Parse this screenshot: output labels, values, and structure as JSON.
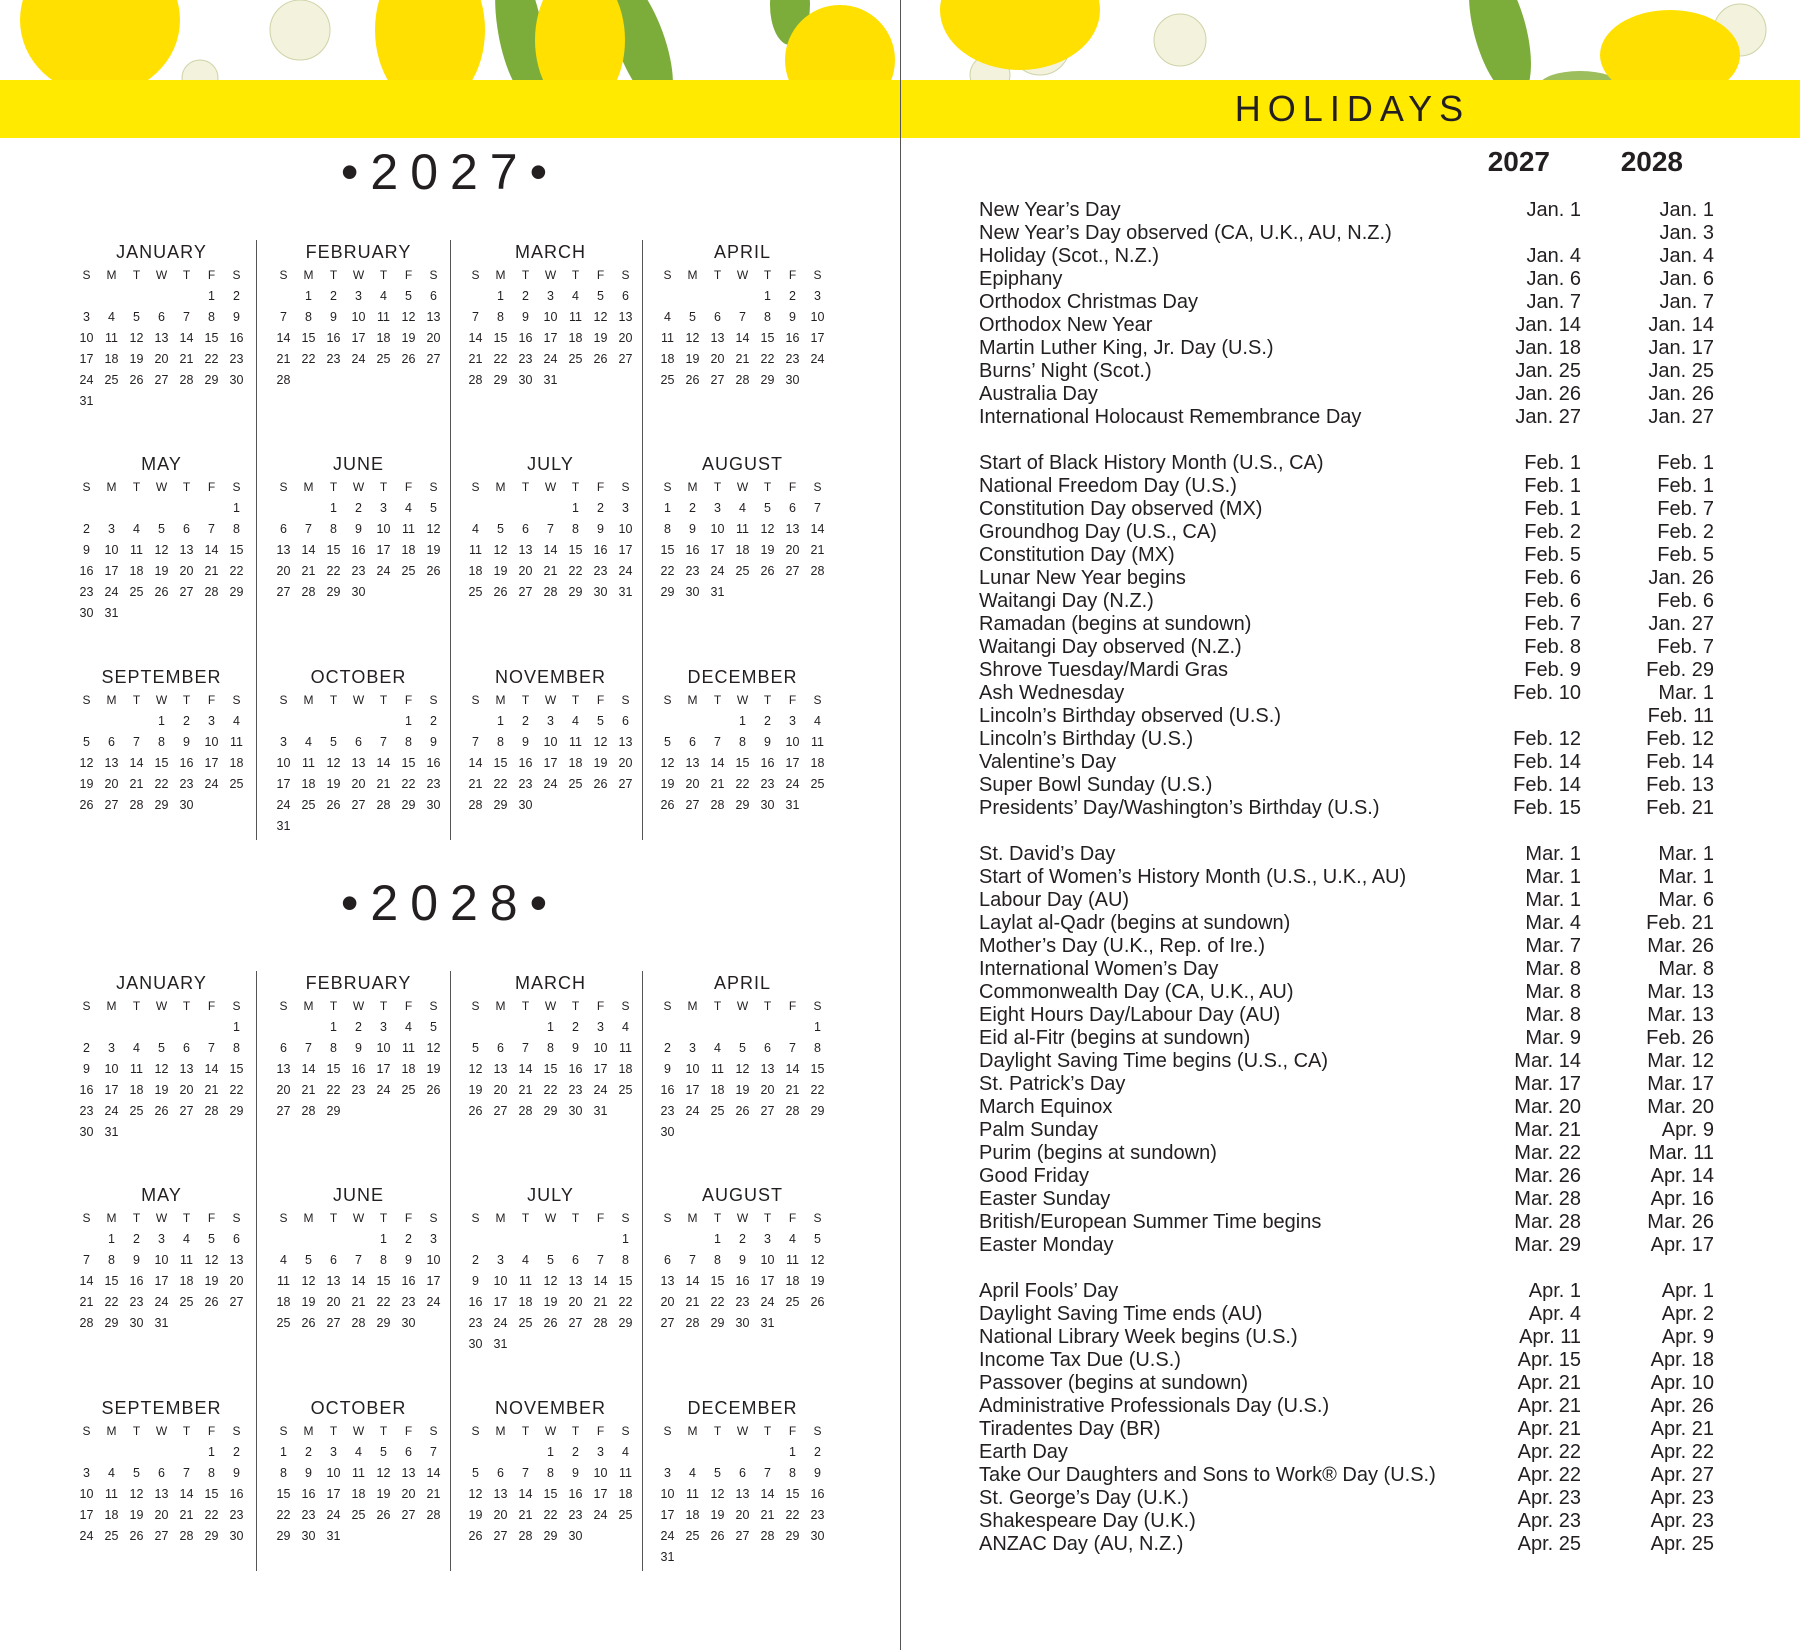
{
  "colors": {
    "band": "#ffea00",
    "text": "#231f20",
    "lemon": "#ffe000",
    "leaf": "#7cad3a"
  },
  "banner": {
    "icon": "lemon-watercolor-illustration"
  },
  "left": {
    "weekdays": [
      "S",
      "M",
      "T",
      "W",
      "T",
      "F",
      "S"
    ],
    "years": [
      {
        "title": "•2027•",
        "months": [
          {
            "name": "JANUARY",
            "start": 5,
            "days": 31
          },
          {
            "name": "FEBRUARY",
            "start": 1,
            "days": 28
          },
          {
            "name": "MARCH",
            "start": 1,
            "days": 31
          },
          {
            "name": "APRIL",
            "start": 4,
            "days": 30
          },
          {
            "name": "MAY",
            "start": 6,
            "days": 31
          },
          {
            "name": "JUNE",
            "start": 2,
            "days": 30
          },
          {
            "name": "JULY",
            "start": 4,
            "days": 31
          },
          {
            "name": "AUGUST",
            "start": 0,
            "days": 31
          },
          {
            "name": "SEPTEMBER",
            "start": 3,
            "days": 30
          },
          {
            "name": "OCTOBER",
            "start": 5,
            "days": 31
          },
          {
            "name": "NOVEMBER",
            "start": 1,
            "days": 30
          },
          {
            "name": "DECEMBER",
            "start": 3,
            "days": 31
          }
        ]
      },
      {
        "title": "•2028•",
        "months": [
          {
            "name": "JANUARY",
            "start": 6,
            "days": 31
          },
          {
            "name": "FEBRUARY",
            "start": 2,
            "days": 29
          },
          {
            "name": "MARCH",
            "start": 3,
            "days": 31
          },
          {
            "name": "APRIL",
            "start": 6,
            "days": 30
          },
          {
            "name": "MAY",
            "start": 1,
            "days": 31
          },
          {
            "name": "JUNE",
            "start": 4,
            "days": 30
          },
          {
            "name": "JULY",
            "start": 6,
            "days": 31
          },
          {
            "name": "AUGUST",
            "start": 2,
            "days": 31
          },
          {
            "name": "SEPTEMBER",
            "start": 5,
            "days": 30
          },
          {
            "name": "OCTOBER",
            "start": 0,
            "days": 31
          },
          {
            "name": "NOVEMBER",
            "start": 3,
            "days": 30
          },
          {
            "name": "DECEMBER",
            "start": 5,
            "days": 31
          }
        ]
      }
    ]
  },
  "holidays": {
    "title": "HOLIDAYS",
    "columns": [
      "2027",
      "2028"
    ],
    "groups": [
      [
        [
          "New Year’s Day",
          "Jan. 1",
          "Jan. 1"
        ],
        [
          "New Year’s Day observed (CA, U.K., AU, N.Z.)",
          "",
          "Jan. 3"
        ],
        [
          "Holiday (Scot., N.Z.)",
          "Jan. 4",
          "Jan. 4"
        ],
        [
          "Epiphany",
          "Jan. 6",
          "Jan. 6"
        ],
        [
          "Orthodox Christmas Day",
          "Jan. 7",
          "Jan. 7"
        ],
        [
          "Orthodox New Year",
          "Jan. 14",
          "Jan. 14"
        ],
        [
          "Martin Luther King, Jr. Day (U.S.)",
          "Jan. 18",
          "Jan. 17"
        ],
        [
          "Burns’ Night (Scot.)",
          "Jan. 25",
          "Jan. 25"
        ],
        [
          "Australia Day",
          "Jan. 26",
          "Jan. 26"
        ],
        [
          "International Holocaust Remembrance Day",
          "Jan. 27",
          "Jan. 27"
        ]
      ],
      [
        [
          "Start of Black History Month (U.S., CA)",
          "Feb. 1",
          "Feb. 1"
        ],
        [
          "National Freedom Day (U.S.)",
          "Feb. 1",
          "Feb. 1"
        ],
        [
          "Constitution Day observed (MX)",
          "Feb. 1",
          "Feb. 7"
        ],
        [
          "Groundhog Day (U.S., CA)",
          "Feb. 2",
          "Feb. 2"
        ],
        [
          "Constitution Day (MX)",
          "Feb. 5",
          "Feb. 5"
        ],
        [
          "Lunar New Year begins",
          "Feb. 6",
          "Jan. 26"
        ],
        [
          "Waitangi Day (N.Z.)",
          "Feb. 6",
          "Feb. 6"
        ],
        [
          "Ramadan (begins at sundown)",
          "Feb. 7",
          "Jan. 27"
        ],
        [
          "Waitangi Day observed (N.Z.)",
          "Feb. 8",
          "Feb. 7"
        ],
        [
          "Shrove Tuesday/Mardi Gras",
          "Feb. 9",
          "Feb. 29"
        ],
        [
          "Ash Wednesday",
          "Feb. 10",
          "Mar. 1"
        ],
        [
          "Lincoln’s Birthday observed (U.S.)",
          "",
          "Feb. 11"
        ],
        [
          "Lincoln’s Birthday (U.S.)",
          "Feb. 12",
          "Feb. 12"
        ],
        [
          "Valentine’s Day",
          "Feb. 14",
          "Feb. 14"
        ],
        [
          "Super Bowl Sunday (U.S.)",
          "Feb. 14",
          "Feb. 13"
        ],
        [
          "Presidents’ Day/Washington’s Birthday (U.S.)",
          "Feb. 15",
          "Feb. 21"
        ]
      ],
      [
        [
          "St. David’s Day",
          "Mar. 1",
          "Mar. 1"
        ],
        [
          "Start of Women’s History Month (U.S., U.K., AU)",
          "Mar. 1",
          "Mar. 1"
        ],
        [
          "Labour Day (AU)",
          "Mar. 1",
          "Mar. 6"
        ],
        [
          "Laylat al-Qadr (begins at sundown)",
          "Mar. 4",
          "Feb. 21"
        ],
        [
          "Mother’s Day (U.K., Rep. of Ire.)",
          "Mar. 7",
          "Mar. 26"
        ],
        [
          "International Women’s Day",
          "Mar. 8",
          "Mar. 8"
        ],
        [
          "Commonwealth Day (CA, U.K., AU)",
          "Mar. 8",
          "Mar. 13"
        ],
        [
          "Eight Hours Day/Labour Day (AU)",
          "Mar. 8",
          "Mar. 13"
        ],
        [
          "Eid al-Fitr (begins at sundown)",
          "Mar. 9",
          "Feb. 26"
        ],
        [
          "Daylight Saving Time begins (U.S., CA)",
          "Mar. 14",
          "Mar. 12"
        ],
        [
          "St. Patrick’s Day",
          "Mar. 17",
          "Mar. 17"
        ],
        [
          "March Equinox",
          "Mar. 20",
          "Mar. 20"
        ],
        [
          "Palm Sunday",
          "Mar. 21",
          "Apr. 9"
        ],
        [
          "Purim (begins at sundown)",
          "Mar. 22",
          "Mar. 11"
        ],
        [
          "Good Friday",
          "Mar. 26",
          "Apr. 14"
        ],
        [
          "Easter Sunday",
          "Mar. 28",
          "Apr. 16"
        ],
        [
          "British/European Summer Time begins",
          "Mar. 28",
          "Mar. 26"
        ],
        [
          "Easter Monday",
          "Mar. 29",
          "Apr. 17"
        ]
      ],
      [
        [
          "April Fools’ Day",
          "Apr. 1",
          "Apr. 1"
        ],
        [
          "Daylight Saving Time ends (AU)",
          "Apr. 4",
          "Apr. 2"
        ],
        [
          "National Library Week begins (U.S.)",
          "Apr. 11",
          "Apr. 9"
        ],
        [
          "Income Tax Due (U.S.)",
          "Apr. 15",
          "Apr. 18"
        ],
        [
          "Passover (begins at sundown)",
          "Apr. 21",
          "Apr. 10"
        ],
        [
          "Administrative Professionals Day (U.S.)",
          "Apr. 21",
          "Apr. 26"
        ],
        [
          "Tiradentes Day (BR)",
          "Apr. 21",
          "Apr. 21"
        ],
        [
          "Earth Day",
          "Apr. 22",
          "Apr. 22"
        ],
        [
          "Take Our Daughters and Sons to Work® Day (U.S.)",
          "Apr. 22",
          "Apr. 27"
        ],
        [
          "St. George’s Day (U.K.)",
          "Apr. 23",
          "Apr. 23"
        ],
        [
          "Shakespeare Day (U.K.)",
          "Apr. 23",
          "Apr. 23"
        ],
        [
          "ANZAC Day (AU, N.Z.)",
          "Apr. 25",
          "Apr. 25"
        ]
      ]
    ]
  }
}
